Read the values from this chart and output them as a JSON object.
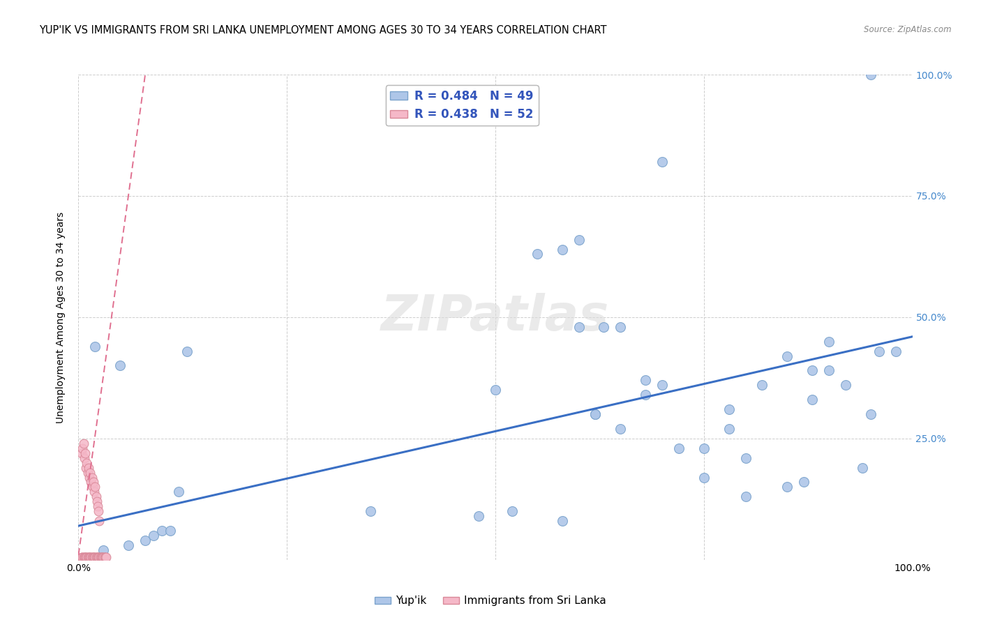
{
  "title": "YUP'IK VS IMMIGRANTS FROM SRI LANKA UNEMPLOYMENT AMONG AGES 30 TO 34 YEARS CORRELATION CHART",
  "source": "Source: ZipAtlas.com",
  "ylabel": "Unemployment Among Ages 30 to 34 years",
  "watermark": "ZIPatlas",
  "legend_r1": "R = 0.484",
  "legend_n1": "N = 49",
  "legend_r2": "R = 0.438",
  "legend_n2": "N = 52",
  "legend_label1": "Yup'ik",
  "legend_label2": "Immigrants from Sri Lanka",
  "blue_scatter_x": [
    0.02,
    0.05,
    0.12,
    0.13,
    0.5,
    0.55,
    0.6,
    0.62,
    0.63,
    0.65,
    0.68,
    0.7,
    0.72,
    0.75,
    0.78,
    0.8,
    0.82,
    0.85,
    0.87,
    0.88,
    0.9,
    0.92,
    0.94,
    0.95,
    0.96,
    0.98,
    0.03,
    0.06,
    0.08,
    0.09,
    0.1,
    0.11,
    0.6,
    0.65,
    0.7,
    0.75,
    0.8,
    0.85,
    0.9,
    0.95,
    0.58,
    0.62,
    0.68,
    0.78,
    0.88,
    0.35,
    0.48,
    0.52,
    0.58
  ],
  "blue_scatter_y": [
    0.44,
    0.4,
    0.14,
    0.43,
    0.35,
    0.63,
    0.48,
    0.3,
    0.48,
    0.27,
    0.37,
    0.36,
    0.23,
    0.17,
    0.31,
    0.21,
    0.36,
    0.15,
    0.16,
    0.39,
    0.45,
    0.36,
    0.19,
    0.3,
    0.43,
    0.43,
    0.02,
    0.03,
    0.04,
    0.05,
    0.06,
    0.06,
    0.66,
    0.48,
    0.82,
    0.23,
    0.13,
    0.42,
    0.39,
    1.0,
    0.64,
    0.3,
    0.34,
    0.27,
    0.33,
    0.1,
    0.09,
    0.1,
    0.08
  ],
  "pink_scatter_x": [
    0.004,
    0.005,
    0.006,
    0.007,
    0.008,
    0.009,
    0.01,
    0.011,
    0.012,
    0.013,
    0.014,
    0.015,
    0.016,
    0.017,
    0.018,
    0.019,
    0.02,
    0.021,
    0.022,
    0.023,
    0.024,
    0.025,
    0.026,
    0.027,
    0.028,
    0.029,
    0.03,
    0.031,
    0.032,
    0.033,
    0.004,
    0.005,
    0.006,
    0.007,
    0.008,
    0.009,
    0.01,
    0.011,
    0.012,
    0.013,
    0.014,
    0.015,
    0.016,
    0.017,
    0.018,
    0.019,
    0.02,
    0.021,
    0.022,
    0.023,
    0.024,
    0.025
  ],
  "pink_scatter_y": [
    0.005,
    0.005,
    0.005,
    0.005,
    0.005,
    0.005,
    0.005,
    0.005,
    0.005,
    0.005,
    0.005,
    0.005,
    0.005,
    0.005,
    0.005,
    0.005,
    0.005,
    0.005,
    0.005,
    0.005,
    0.005,
    0.005,
    0.005,
    0.005,
    0.005,
    0.005,
    0.005,
    0.005,
    0.005,
    0.005,
    0.22,
    0.23,
    0.24,
    0.21,
    0.22,
    0.19,
    0.2,
    0.18,
    0.19,
    0.17,
    0.18,
    0.16,
    0.17,
    0.15,
    0.16,
    0.14,
    0.15,
    0.13,
    0.12,
    0.11,
    0.1,
    0.08
  ],
  "blue_line_x": [
    0.0,
    1.0
  ],
  "blue_line_y": [
    0.07,
    0.46
  ],
  "pink_line_x": [
    0.0,
    0.08
  ],
  "pink_line_y": [
    0.01,
    1.0
  ],
  "xlim": [
    0.0,
    1.0
  ],
  "ylim": [
    0.0,
    1.0
  ],
  "xticks": [
    0.0,
    0.25,
    0.5,
    0.75,
    1.0
  ],
  "xticklabels": [
    "0.0%",
    "",
    "",
    "",
    "100.0%"
  ],
  "yticks": [
    0.0,
    0.25,
    0.5,
    0.75,
    1.0
  ],
  "right_yticklabels": [
    "",
    "25.0%",
    "50.0%",
    "75.0%",
    "100.0%"
  ],
  "scatter_size": 100,
  "blue_color": "#aec6e8",
  "blue_edge": "#7ba3cc",
  "pink_color": "#f5b8c8",
  "pink_edge": "#d98898",
  "blue_line_color": "#3a6fc4",
  "pink_line_color": "#e07090",
  "grid_color": "#c8c8c8",
  "bg_color": "#ffffff",
  "title_fontsize": 10.5,
  "axis_fontsize": 10,
  "right_label_color": "#4488cc"
}
